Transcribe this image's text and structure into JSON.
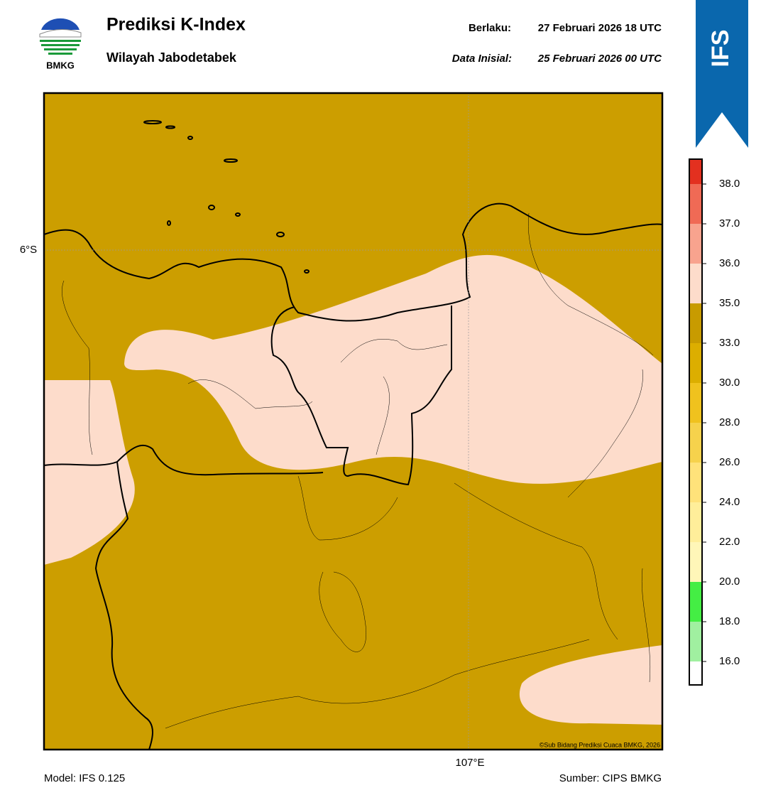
{
  "header": {
    "logo_text": "BMKG",
    "title": "Prediksi K-Index",
    "subtitle": "Wilayah Jabodetabek",
    "valid_label": "Berlaku:",
    "valid_time": "27 Februari 2026 18 UTC",
    "init_label": "Data Inisial:",
    "init_time": "25 Februari 2026 00 UTC",
    "badge": "IFS"
  },
  "map": {
    "lat_label": "6°S",
    "lon_label": "107°E",
    "copyright": "©Sub Bidang Prediksi Cuaca BMKG, 2026"
  },
  "colorbar": {
    "ticks": [
      {
        "value": 16,
        "label": "16.0"
      },
      {
        "value": 18,
        "label": "18.0"
      },
      {
        "value": 20,
        "label": "20.0"
      },
      {
        "value": 22,
        "label": "22.0"
      },
      {
        "value": 24,
        "label": "24.0"
      },
      {
        "value": 26,
        "label": "26.0"
      },
      {
        "value": 28,
        "label": "28.0"
      },
      {
        "value": 30,
        "label": "30.0"
      },
      {
        "value": 33,
        "label": "33.0"
      },
      {
        "value": 35,
        "label": "35.0"
      },
      {
        "value": 36,
        "label": "36.0"
      },
      {
        "value": 37,
        "label": "37.0"
      },
      {
        "value": 38,
        "label": "38.0"
      }
    ],
    "colors": [
      "#ffffff",
      "#a0f0a0",
      "#44ee44",
      "#fff6b8",
      "#ffee9a",
      "#ffe27a",
      "#f6d24c",
      "#f0c21e",
      "#dcae00",
      "#c89b00",
      "#fddccb",
      "#f8a38e",
      "#f06a55",
      "#e3301f"
    ]
  },
  "footer": {
    "model": "Model: IFS 0.125",
    "source": "Sumber: CIPS BMKG"
  }
}
